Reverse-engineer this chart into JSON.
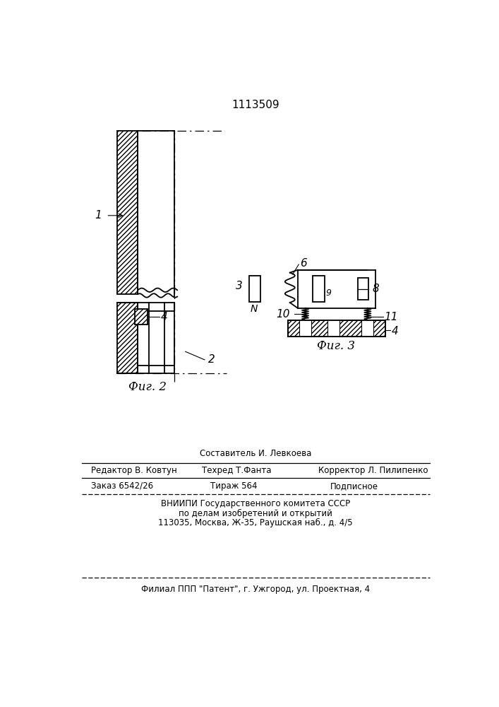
{
  "title": "1113509",
  "fig2_label": "Фиг. 2",
  "fig3_label": "Фиг. 3",
  "bg_color": "#ffffff",
  "line_color": "#000000",
  "label1": "1",
  "label2": "2",
  "label3": "3",
  "label4": "4",
  "label6": "6",
  "label8": "8",
  "label9": "9",
  "label10": "10",
  "label11": "11",
  "labelN": "N",
  "footer_sestavitel": "Составитель И. Левкоева",
  "footer_redaktor": "Редактор В. Ковтун",
  "footer_tekhred": "Техред Т.Фанта",
  "footer_korrektor": "Корректор Л. Пилипенко",
  "footer_zakaz": "Заказ 6542/26",
  "footer_tirazh": "Тираж 564",
  "footer_podpisnoe": "Подписное",
  "footer_vniipи": "ВНИИПИ Государственного комитета СССР",
  "footer_podelam": "по делам изобретений и открытий",
  "footer_address": "113035, Москва, Ж-35, Раушская наб., д. 4/5",
  "footer_filial": "Филиал ППП \"Патент\", г. Ужгород, ул. Проектная, 4"
}
